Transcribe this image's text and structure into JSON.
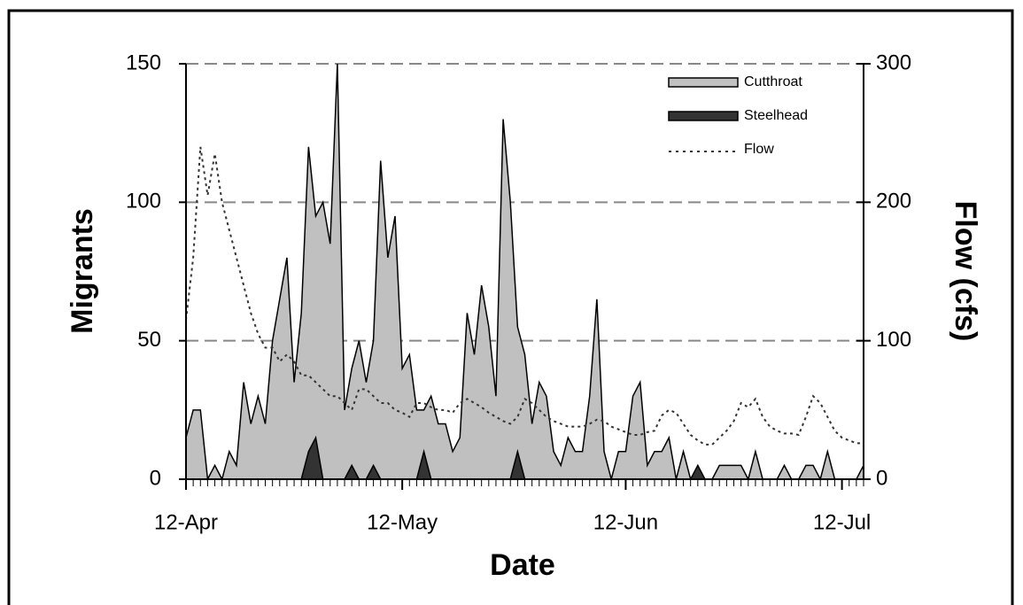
{
  "chart_data": {
    "type": "area",
    "x_label": "Date",
    "y_label": "Migrants",
    "y2_label": "Flow (cfs)",
    "x": [
      0,
      1,
      2,
      3,
      4,
      5,
      6,
      7,
      8,
      9,
      10,
      11,
      12,
      13,
      14,
      15,
      16,
      17,
      18,
      19,
      20,
      21,
      22,
      23,
      24,
      25,
      26,
      27,
      28,
      29,
      30,
      31,
      32,
      33,
      34,
      35,
      36,
      37,
      38,
      39,
      40,
      41,
      42,
      43,
      44,
      45,
      46,
      47,
      48,
      49,
      50,
      51,
      52,
      53,
      54,
      55,
      56,
      57,
      58,
      59,
      60,
      61,
      62,
      63,
      64,
      65,
      66,
      67,
      68,
      69,
      70,
      71,
      72,
      73,
      74,
      75,
      76,
      77,
      78,
      79,
      80,
      81,
      82,
      83,
      84,
      85,
      86,
      87,
      88,
      89,
      90,
      91,
      92,
      93,
      94
    ],
    "xlim": [
      0,
      94
    ],
    "xticks": [
      {
        "value": 0,
        "label": "12-Apr"
      },
      {
        "value": 30,
        "label": "12-May"
      },
      {
        "value": 61,
        "label": "12-Jun"
      },
      {
        "value": 91,
        "label": "12-Jul"
      }
    ],
    "x_minor_tick_step": 1,
    "ylim": [
      0,
      150
    ],
    "yticks": [
      0,
      50,
      100,
      150
    ],
    "y2lim": [
      0,
      300
    ],
    "y2ticks": [
      0,
      100,
      200,
      300
    ],
    "grid": true,
    "legend": "top-right",
    "series": [
      {
        "name": "Cutthroat",
        "type": "area",
        "color": "#c0c0c0",
        "values": [
          15,
          25,
          25,
          0,
          5,
          0,
          10,
          5,
          35,
          20,
          30,
          20,
          50,
          65,
          80,
          35,
          60,
          120,
          95,
          100,
          85,
          150,
          25,
          40,
          50,
          35,
          50,
          115,
          80,
          95,
          40,
          45,
          25,
          25,
          30,
          20,
          20,
          10,
          15,
          60,
          45,
          70,
          55,
          30,
          130,
          100,
          55,
          45,
          20,
          35,
          30,
          10,
          5,
          15,
          10,
          10,
          30,
          65,
          10,
          0,
          10,
          10,
          30,
          35,
          5,
          10,
          10,
          15,
          0,
          10,
          0,
          0,
          0,
          0,
          5,
          5,
          5,
          5,
          0,
          10,
          0,
          0,
          0,
          5,
          0,
          0,
          5,
          5,
          0,
          10,
          0,
          0,
          0,
          0,
          5
        ]
      },
      {
        "name": "Steelhead",
        "type": "area",
        "color": "#333333",
        "values": [
          0,
          0,
          0,
          0,
          0,
          0,
          0,
          0,
          0,
          0,
          0,
          0,
          0,
          0,
          0,
          0,
          0,
          10,
          15,
          0,
          0,
          0,
          0,
          5,
          0,
          0,
          5,
          0,
          0,
          0,
          0,
          0,
          0,
          10,
          0,
          0,
          0,
          0,
          0,
          0,
          0,
          0,
          0,
          0,
          0,
          0,
          10,
          0,
          0,
          0,
          0,
          0,
          0,
          0,
          0,
          0,
          0,
          0,
          0,
          0,
          0,
          0,
          0,
          0,
          0,
          0,
          0,
          0,
          0,
          0,
          0,
          5,
          0,
          0,
          0,
          0,
          0,
          0,
          0,
          0,
          0,
          0,
          0,
          0,
          0,
          0,
          0,
          0,
          0,
          0,
          0,
          0,
          0,
          0,
          0
        ]
      },
      {
        "name": "Flow",
        "type": "line",
        "axis": "y2",
        "color": "#333333",
        "values": [
          115,
          160,
          240,
          205,
          235,
          200,
          180,
          160,
          140,
          120,
          105,
          95,
          95,
          85,
          90,
          85,
          75,
          75,
          70,
          65,
          60,
          60,
          55,
          50,
          65,
          65,
          60,
          55,
          55,
          50,
          48,
          45,
          55,
          55,
          52,
          50,
          50,
          48,
          55,
          58,
          55,
          52,
          48,
          45,
          42,
          40,
          45,
          58,
          55,
          50,
          45,
          42,
          40,
          38,
          38,
          38,
          40,
          43,
          42,
          38,
          36,
          34,
          32,
          32,
          34,
          35,
          46,
          50,
          48,
          40,
          32,
          28,
          25,
          25,
          30,
          35,
          42,
          55,
          52,
          58,
          45,
          38,
          35,
          33,
          33,
          32,
          45,
          60,
          55,
          45,
          35,
          30,
          28,
          26,
          26
        ]
      }
    ]
  }
}
